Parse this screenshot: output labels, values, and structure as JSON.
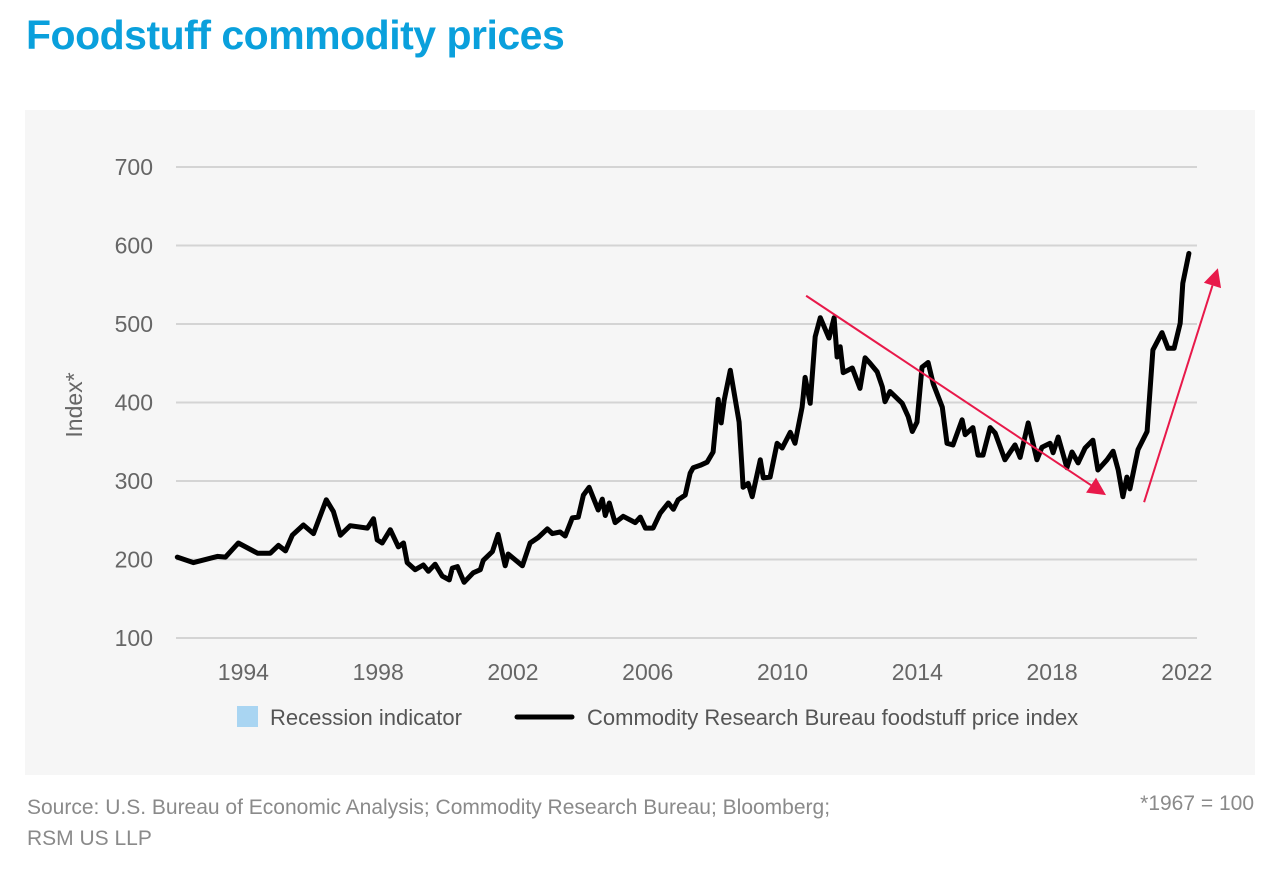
{
  "chart_data": {
    "type": "line",
    "title": "Foodstuff commodity prices",
    "xlabel": "",
    "ylabel": "Index*",
    "xlim": [
      1992,
      2022.3
    ],
    "ylim": [
      100,
      700
    ],
    "x_ticks": [
      "1994",
      "1998",
      "2002",
      "2006",
      "2010",
      "2014",
      "2018",
      "2022"
    ],
    "y_ticks": [
      "100",
      "200",
      "300",
      "400",
      "500",
      "600",
      "700"
    ],
    "grid": "horizontal",
    "legend_position": "bottom",
    "legend": [
      {
        "label": "Recession indicator",
        "type": "patch",
        "color": "#a9d5f2"
      },
      {
        "label": "Commodity Research Bureau foodstuff price index",
        "type": "line",
        "color": "#000000"
      }
    ],
    "series": [
      {
        "name": "Commodity Research Bureau foodstuff price index",
        "color": "#000000",
        "points": [
          [
            1992.04,
            203
          ],
          [
            1992.52,
            196
          ],
          [
            1993.23,
            204
          ],
          [
            1993.47,
            203
          ],
          [
            1993.85,
            221
          ],
          [
            1994.42,
            208
          ],
          [
            1994.8,
            208
          ],
          [
            1995.04,
            218
          ],
          [
            1995.25,
            211
          ],
          [
            1995.45,
            231
          ],
          [
            1995.78,
            244
          ],
          [
            1996.08,
            233
          ],
          [
            1996.46,
            276
          ],
          [
            1996.67,
            261
          ],
          [
            1996.88,
            231
          ],
          [
            1997.17,
            243
          ],
          [
            1997.68,
            240
          ],
          [
            1997.86,
            252
          ],
          [
            1997.97,
            225
          ],
          [
            1998.12,
            221
          ],
          [
            1998.36,
            238
          ],
          [
            1998.6,
            216
          ],
          [
            1998.75,
            221
          ],
          [
            1998.86,
            196
          ],
          [
            1999.1,
            187
          ],
          [
            1999.34,
            193
          ],
          [
            1999.49,
            185
          ],
          [
            1999.69,
            194
          ],
          [
            1999.9,
            179
          ],
          [
            2000.11,
            174
          ],
          [
            2000.2,
            189
          ],
          [
            2000.35,
            191
          ],
          [
            2000.55,
            171
          ],
          [
            2000.82,
            183
          ],
          [
            2001.03,
            187
          ],
          [
            2001.12,
            199
          ],
          [
            2001.39,
            210
          ],
          [
            2001.56,
            232
          ],
          [
            2001.77,
            192
          ],
          [
            2001.86,
            207
          ],
          [
            2002.28,
            192
          ],
          [
            2002.51,
            221
          ],
          [
            2002.75,
            228
          ],
          [
            2003.02,
            239
          ],
          [
            2003.17,
            233
          ],
          [
            2003.4,
            235
          ],
          [
            2003.55,
            230
          ],
          [
            2003.76,
            253
          ],
          [
            2003.94,
            254
          ],
          [
            2004.09,
            282
          ],
          [
            2004.26,
            292
          ],
          [
            2004.53,
            263
          ],
          [
            2004.65,
            277
          ],
          [
            2004.74,
            256
          ],
          [
            2004.86,
            272
          ],
          [
            2005.03,
            247
          ],
          [
            2005.27,
            255
          ],
          [
            2005.63,
            247
          ],
          [
            2005.78,
            254
          ],
          [
            2005.93,
            240
          ],
          [
            2006.16,
            240
          ],
          [
            2006.37,
            259
          ],
          [
            2006.61,
            272
          ],
          [
            2006.76,
            264
          ],
          [
            2006.9,
            276
          ],
          [
            2007.11,
            282
          ],
          [
            2007.26,
            310
          ],
          [
            2007.35,
            317
          ],
          [
            2007.56,
            320
          ],
          [
            2007.76,
            324
          ],
          [
            2007.94,
            337
          ],
          [
            2008.09,
            404
          ],
          [
            2008.18,
            374
          ],
          [
            2008.27,
            403
          ],
          [
            2008.45,
            441
          ],
          [
            2008.71,
            375
          ],
          [
            2008.8,
            314
          ],
          [
            2008.83,
            292
          ],
          [
            2008.98,
            297
          ],
          [
            2009.1,
            280
          ],
          [
            2009.34,
            327
          ],
          [
            2009.43,
            304
          ],
          [
            2009.63,
            305
          ],
          [
            2009.84,
            348
          ],
          [
            2009.99,
            342
          ],
          [
            2010.23,
            362
          ],
          [
            2010.37,
            348
          ],
          [
            2010.58,
            394
          ],
          [
            2010.67,
            432
          ],
          [
            2010.82,
            399
          ],
          [
            2010.97,
            484
          ],
          [
            2011.12,
            508
          ],
          [
            2011.38,
            482
          ],
          [
            2011.53,
            508
          ],
          [
            2011.62,
            458
          ],
          [
            2011.71,
            471
          ],
          [
            2011.8,
            438
          ],
          [
            2012.07,
            444
          ],
          [
            2012.3,
            418
          ],
          [
            2012.45,
            457
          ],
          [
            2012.6,
            450
          ],
          [
            2012.81,
            439
          ],
          [
            2012.96,
            420
          ],
          [
            2013.04,
            401
          ],
          [
            2013.19,
            414
          ],
          [
            2013.55,
            399
          ],
          [
            2013.73,
            382
          ],
          [
            2013.85,
            363
          ],
          [
            2013.99,
            375
          ],
          [
            2014.14,
            445
          ],
          [
            2014.32,
            451
          ],
          [
            2014.47,
            424
          ],
          [
            2014.74,
            394
          ],
          [
            2014.88,
            348
          ],
          [
            2015.06,
            346
          ],
          [
            2015.33,
            378
          ],
          [
            2015.42,
            359
          ],
          [
            2015.65,
            368
          ],
          [
            2015.8,
            333
          ],
          [
            2015.95,
            333
          ],
          [
            2016.16,
            368
          ],
          [
            2016.31,
            361
          ],
          [
            2016.6,
            327
          ],
          [
            2016.9,
            346
          ],
          [
            2017.05,
            330
          ],
          [
            2017.29,
            374
          ],
          [
            2017.55,
            327
          ],
          [
            2017.7,
            343
          ],
          [
            2017.94,
            348
          ],
          [
            2018.03,
            336
          ],
          [
            2018.18,
            356
          ],
          [
            2018.44,
            317
          ],
          [
            2018.59,
            337
          ],
          [
            2018.77,
            323
          ],
          [
            2018.98,
            342
          ],
          [
            2019.21,
            352
          ],
          [
            2019.36,
            314
          ],
          [
            2019.63,
            327
          ],
          [
            2019.81,
            338
          ],
          [
            2019.96,
            314
          ],
          [
            2020.1,
            280
          ],
          [
            2020.22,
            305
          ],
          [
            2020.31,
            290
          ],
          [
            2020.55,
            340
          ],
          [
            2020.82,
            363
          ],
          [
            2020.99,
            467
          ],
          [
            2021.26,
            489
          ],
          [
            2021.44,
            469
          ],
          [
            2021.62,
            469
          ],
          [
            2021.8,
            501
          ],
          [
            2021.88,
            552
          ],
          [
            2022.06,
            590
          ]
        ]
      }
    ],
    "annotations": [
      {
        "type": "arrow",
        "color": "#e8194a",
        "from": [
          2010.7,
          536
        ],
        "to": [
          2019.6,
          282
        ]
      },
      {
        "type": "arrow",
        "color": "#e8194a",
        "from": [
          2020.73,
          273
        ],
        "to": [
          2022.92,
          571
        ]
      }
    ]
  },
  "footer": {
    "source": "Source: U.S. Bureau of Economic Analysis; Commodity Research Bureau; Bloomberg; RSM US LLP",
    "note": "*1967 = 100"
  }
}
